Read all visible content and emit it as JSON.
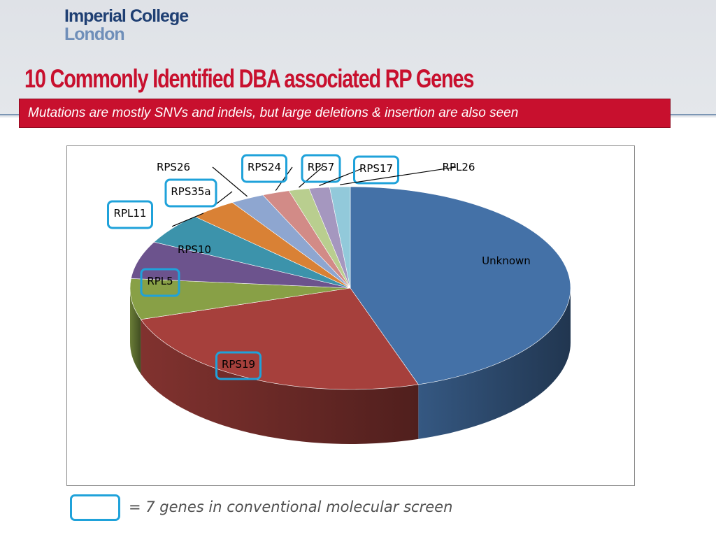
{
  "logo": {
    "line1": "Imperial College",
    "line2": "London"
  },
  "title": "10 Commonly Identified DBA associated RP Genes",
  "subtitle": "Mutations are mostly SNVs and indels, but large deletions & insertion are also seen",
  "legend": {
    "text": "= 7 genes in conventional molecular screen",
    "highlight_color": "#1fa2da"
  },
  "chart_data": {
    "type": "pie",
    "title": "",
    "start": "12 o'clock, clockwise",
    "slices": [
      {
        "label": "Unknown",
        "value": 45.0,
        "color": "#4471a7",
        "highlighted": false
      },
      {
        "label": "RPS19",
        "value": 25.0,
        "color": "#a6403c",
        "highlighted": true
      },
      {
        "label": "RPL5",
        "value": 6.5,
        "color": "#88a046",
        "highlighted": true
      },
      {
        "label": "RPS10",
        "value": 6.0,
        "color": "#6c538d",
        "highlighted": false
      },
      {
        "label": "RPL11",
        "value": 5.0,
        "color": "#3c93ab",
        "highlighted": true
      },
      {
        "label": "RPS35a",
        "value": 3.5,
        "color": "#d98135",
        "highlighted": true
      },
      {
        "label": "RPS26",
        "value": 2.5,
        "color": "#8ea6d0",
        "highlighted": false
      },
      {
        "label": "RPS24",
        "value": 2.0,
        "color": "#d28b87",
        "highlighted": true
      },
      {
        "label": "RPS7",
        "value": 1.5,
        "color": "#b9ce8f",
        "highlighted": true
      },
      {
        "label": "RPS17",
        "value": 1.5,
        "color": "#a597bf",
        "highlighted": true
      },
      {
        "label": "RPL26",
        "value": 1.5,
        "color": "#92c9da",
        "highlighted": false
      }
    ]
  }
}
